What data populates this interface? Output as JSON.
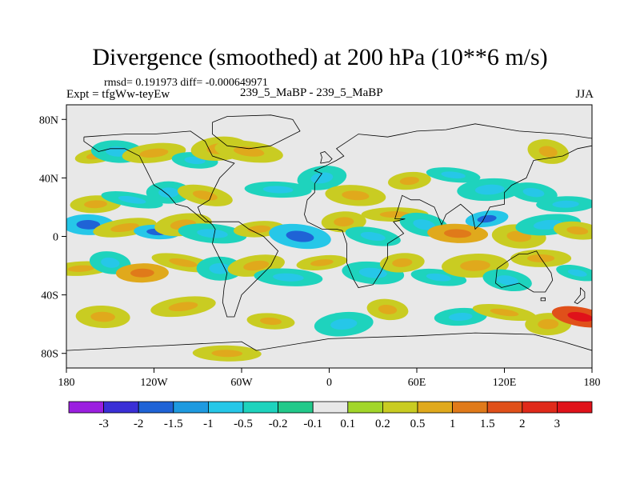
{
  "chart_data": {
    "type": "contour-map",
    "title": "Divergence (smoothed) at 200 hPa (10**6 m/s)",
    "stats": {
      "rmsd_label": "rmsd=",
      "rmsd": "0.191973",
      "diff_label": "diff=",
      "diff": "-0.000649971"
    },
    "experiment": "Expt = tfgWw-teyEw",
    "difference_label": "239_5_MaBP - 239_5_MaBP",
    "season": "JJA",
    "lon_range": [
      -180,
      180
    ],
    "lat_range": [
      -90,
      90
    ],
    "x_ticks": [
      {
        "value": -180,
        "label": "180"
      },
      {
        "value": -120,
        "label": "120W"
      },
      {
        "value": -60,
        "label": "60W"
      },
      {
        "value": 0,
        "label": "0"
      },
      {
        "value": 60,
        "label": "60E"
      },
      {
        "value": 120,
        "label": "120E"
      },
      {
        "value": 180,
        "label": "180"
      }
    ],
    "y_ticks": [
      {
        "value": 80,
        "label": "80N"
      },
      {
        "value": 40,
        "label": "40N"
      },
      {
        "value": 0,
        "label": "0"
      },
      {
        "value": -40,
        "label": "40S"
      },
      {
        "value": -80,
        "label": "80S"
      }
    ],
    "colorbar": {
      "levels": [
        "-3",
        "-2",
        "-1.5",
        "-1",
        "-0.5",
        "-0.2",
        "-0.1",
        "0.1",
        "0.2",
        "0.5",
        "1",
        "1.5",
        "2",
        "3"
      ],
      "colors": [
        "#9b1fe0",
        "#3a2fd6",
        "#1f63d6",
        "#1e9ae0",
        "#26c7e8",
        "#1ed3bd",
        "#22c98a",
        "#e8e8e8",
        "#a2d62a",
        "#c9cc22",
        "#e0a91c",
        "#e07a1a",
        "#e0501a",
        "#e02a1a",
        "#e0121a"
      ]
    },
    "features": [
      {
        "lon": -160,
        "lat": 55,
        "level": 0.3
      },
      {
        "lon": -145,
        "lat": 58,
        "level": -0.3
      },
      {
        "lon": -120,
        "lat": 57,
        "level": 0.3
      },
      {
        "lon": -92,
        "lat": 52,
        "level": -0.3
      },
      {
        "lon": -75,
        "lat": 60,
        "level": 0.3
      },
      {
        "lon": -55,
        "lat": 58,
        "level": 0.3
      },
      {
        "lon": -160,
        "lat": 22,
        "level": 0.3
      },
      {
        "lon": -135,
        "lat": 25,
        "level": -0.3
      },
      {
        "lon": -110,
        "lat": 30,
        "level": -0.3
      },
      {
        "lon": -85,
        "lat": 28,
        "level": 0.3
      },
      {
        "lon": -35,
        "lat": 32,
        "level": -0.3
      },
      {
        "lon": -5,
        "lat": 40,
        "level": -0.3
      },
      {
        "lon": 18,
        "lat": 28,
        "level": 0.3
      },
      {
        "lon": 55,
        "lat": 38,
        "level": 0.3
      },
      {
        "lon": 85,
        "lat": 42,
        "level": -0.3
      },
      {
        "lon": 110,
        "lat": 32,
        "level": -0.3
      },
      {
        "lon": 140,
        "lat": 30,
        "level": -0.3
      },
      {
        "lon": 162,
        "lat": 22,
        "level": -0.3
      },
      {
        "lon": 150,
        "lat": 58,
        "level": 0.3
      },
      {
        "lon": -165,
        "lat": 8,
        "level": -0.7
      },
      {
        "lon": -140,
        "lat": 6,
        "level": 0.3
      },
      {
        "lon": -118,
        "lat": 3,
        "level": -0.7
      },
      {
        "lon": -100,
        "lat": 8,
        "level": 0.3
      },
      {
        "lon": -80,
        "lat": 2,
        "level": -0.3
      },
      {
        "lon": -48,
        "lat": 5,
        "level": 0.3
      },
      {
        "lon": -20,
        "lat": 0,
        "level": -0.7
      },
      {
        "lon": 10,
        "lat": 10,
        "level": 0.3
      },
      {
        "lon": 30,
        "lat": 0,
        "level": -0.3
      },
      {
        "lon": 45,
        "lat": 15,
        "level": 0.3
      },
      {
        "lon": 65,
        "lat": 8,
        "level": -0.3
      },
      {
        "lon": 88,
        "lat": 2,
        "level": 0.7
      },
      {
        "lon": 108,
        "lat": 12,
        "level": -0.7
      },
      {
        "lon": 130,
        "lat": 0,
        "level": 0.3
      },
      {
        "lon": 150,
        "lat": 8,
        "level": -0.3
      },
      {
        "lon": 170,
        "lat": 4,
        "level": 0.3
      },
      {
        "lon": -170,
        "lat": -22,
        "level": 0.3
      },
      {
        "lon": -150,
        "lat": -18,
        "level": -0.3
      },
      {
        "lon": -128,
        "lat": -25,
        "level": 0.7
      },
      {
        "lon": -100,
        "lat": -18,
        "level": 0.3
      },
      {
        "lon": -75,
        "lat": -22,
        "level": -0.3
      },
      {
        "lon": -50,
        "lat": -20,
        "level": 0.3
      },
      {
        "lon": -28,
        "lat": -28,
        "level": -0.3
      },
      {
        "lon": -5,
        "lat": -18,
        "level": 0.3
      },
      {
        "lon": 30,
        "lat": -25,
        "level": -0.3
      },
      {
        "lon": 50,
        "lat": -18,
        "level": 0.3
      },
      {
        "lon": 75,
        "lat": -28,
        "level": -0.3
      },
      {
        "lon": 100,
        "lat": -20,
        "level": 0.3
      },
      {
        "lon": 122,
        "lat": -30,
        "level": -0.3
      },
      {
        "lon": 145,
        "lat": -15,
        "level": 0.3
      },
      {
        "lon": 170,
        "lat": -25,
        "level": -0.3
      },
      {
        "lon": -155,
        "lat": -55,
        "level": 0.3
      },
      {
        "lon": -100,
        "lat": -48,
        "level": 0.3
      },
      {
        "lon": -40,
        "lat": -58,
        "level": 0.3
      },
      {
        "lon": 10,
        "lat": -60,
        "level": -0.3
      },
      {
        "lon": 40,
        "lat": -50,
        "level": 0.3
      },
      {
        "lon": 90,
        "lat": -55,
        "level": -0.3
      },
      {
        "lon": 120,
        "lat": -52,
        "level": 0.3
      },
      {
        "lon": 150,
        "lat": -60,
        "level": 0.3
      },
      {
        "lon": 172,
        "lat": -55,
        "level": 1.7
      },
      {
        "lon": -70,
        "lat": -80,
        "level": 0.3
      }
    ],
    "coastline": [
      [
        [
          -80,
          78
        ],
        [
          -70,
          82
        ],
        [
          -40,
          83
        ],
        [
          -25,
          80
        ],
        [
          -20,
          72
        ],
        [
          -40,
          62
        ],
        [
          -55,
          60
        ],
        [
          -70,
          62
        ],
        [
          -80,
          70
        ],
        [
          -80,
          78
        ]
      ],
      [
        [
          -168,
          68
        ],
        [
          -140,
          70
        ],
        [
          -120,
          70
        ],
        [
          -95,
          72
        ],
        [
          -85,
          65
        ],
        [
          -80,
          55
        ],
        [
          -65,
          50
        ],
        [
          -75,
          40
        ],
        [
          -80,
          30
        ],
        [
          -82,
          25
        ],
        [
          -90,
          20
        ],
        [
          -88,
          15
        ],
        [
          -80,
          8
        ],
        [
          -78,
          5
        ],
        [
          -80,
          -5
        ],
        [
          -75,
          -15
        ],
        [
          -70,
          -25
        ],
        [
          -72,
          -35
        ],
        [
          -73,
          -45
        ],
        [
          -70,
          -55
        ],
        [
          -65,
          -55
        ],
        [
          -60,
          -40
        ],
        [
          -50,
          -30
        ],
        [
          -40,
          -20
        ],
        [
          -35,
          -10
        ],
        [
          -45,
          0
        ],
        [
          -55,
          5
        ],
        [
          -62,
          10
        ],
        [
          -75,
          10
        ],
        [
          -85,
          10
        ],
        [
          -92,
          16
        ],
        [
          -97,
          20
        ],
        [
          -105,
          22
        ],
        [
          -110,
          28
        ],
        [
          -115,
          32
        ],
        [
          -120,
          35
        ],
        [
          -125,
          45
        ],
        [
          -130,
          55
        ],
        [
          -140,
          60
        ],
        [
          -150,
          60
        ],
        [
          -158,
          58
        ],
        [
          -168,
          65
        ],
        [
          -168,
          68
        ]
      ],
      [
        [
          -10,
          36
        ],
        [
          -5,
          43
        ],
        [
          -10,
          45
        ],
        [
          -3,
          48
        ],
        [
          5,
          52
        ],
        [
          10,
          55
        ],
        [
          5,
          60
        ],
        [
          20,
          70
        ],
        [
          40,
          68
        ],
        [
          60,
          72
        ],
        [
          80,
          73
        ],
        [
          100,
          77
        ],
        [
          130,
          72
        ],
        [
          160,
          70
        ],
        [
          180,
          67
        ],
        [
          180,
          62
        ],
        [
          170,
          60
        ],
        [
          160,
          55
        ],
        [
          140,
          52
        ],
        [
          135,
          40
        ],
        [
          125,
          35
        ],
        [
          120,
          30
        ],
        [
          120,
          22
        ],
        [
          110,
          20
        ],
        [
          105,
          10
        ],
        [
          100,
          5
        ],
        [
          98,
          15
        ],
        [
          90,
          22
        ],
        [
          80,
          15
        ],
        [
          77,
          8
        ],
        [
          72,
          20
        ],
        [
          62,
          25
        ],
        [
          56,
          25
        ],
        [
          50,
          28
        ],
        [
          45,
          12
        ],
        [
          52,
          12
        ],
        [
          44,
          10
        ],
        [
          51,
          2
        ],
        [
          40,
          -5
        ],
        [
          40,
          -15
        ],
        [
          35,
          -25
        ],
        [
          30,
          -33
        ],
        [
          20,
          -35
        ],
        [
          17,
          -30
        ],
        [
          12,
          -18
        ],
        [
          12,
          -5
        ],
        [
          9,
          4
        ],
        [
          5,
          5
        ],
        [
          -5,
          5
        ],
        [
          -15,
          10
        ],
        [
          -17,
          15
        ],
        [
          -15,
          25
        ],
        [
          -10,
          30
        ],
        [
          -10,
          36
        ]
      ],
      [
        [
          115,
          -22
        ],
        [
          114,
          -32
        ],
        [
          118,
          -35
        ],
        [
          130,
          -32
        ],
        [
          135,
          -35
        ],
        [
          140,
          -38
        ],
        [
          148,
          -38
        ],
        [
          153,
          -30
        ],
        [
          152,
          -25
        ],
        [
          145,
          -15
        ],
        [
          142,
          -10
        ],
        [
          136,
          -12
        ],
        [
          130,
          -12
        ],
        [
          125,
          -15
        ],
        [
          115,
          -22
        ]
      ],
      [
        [
          -180,
          -78
        ],
        [
          -120,
          -75
        ],
        [
          -60,
          -72
        ],
        [
          -50,
          -78
        ],
        [
          0,
          -70
        ],
        [
          60,
          -68
        ],
        [
          100,
          -66
        ],
        [
          140,
          -67
        ],
        [
          160,
          -72
        ],
        [
          180,
          -78
        ]
      ],
      [
        [
          145,
          -42
        ],
        [
          148,
          -42
        ],
        [
          148,
          -44
        ],
        [
          145,
          -44
        ],
        [
          145,
          -42
        ]
      ],
      [
        [
          172,
          -35
        ],
        [
          175,
          -38
        ],
        [
          175,
          -42
        ],
        [
          170,
          -46
        ],
        [
          168,
          -45
        ],
        [
          172,
          -40
        ],
        [
          172,
          -35
        ]
      ],
      [
        [
          -6,
          50
        ],
        [
          0,
          51
        ],
        [
          2,
          53
        ],
        [
          -1,
          56
        ],
        [
          -3,
          58
        ],
        [
          -6,
          57
        ],
        [
          -5,
          54
        ],
        [
          -6,
          50
        ]
      ]
    ]
  }
}
